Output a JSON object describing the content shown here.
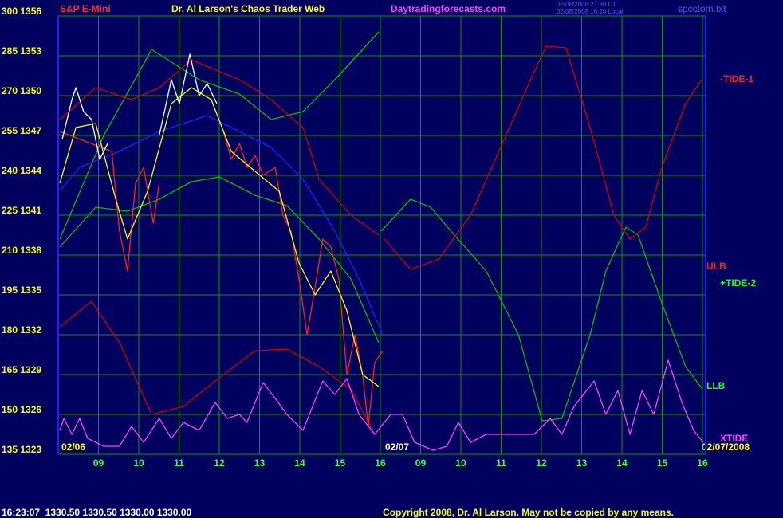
{
  "chart_data": {
    "type": "line",
    "title": "S&P E-Mini",
    "subtitle": "Dr. Al Larson's Chaos Trader Web",
    "site": "Daytradingforecasts.com",
    "stamp": [
      "02/08/2008 21:30 UT",
      "02/08/2008 16:20 Local"
    ],
    "file": "spcctom.txt",
    "date_labels": [
      "02/06",
      "02/07",
      "02/07/2008"
    ],
    "footer_left": "16:23:07  1330.50 1330.50 1330.00 1330.00",
    "footer_right": "Copyright 2008, Dr. Al Larson. May not be copied by any means.",
    "annotations": [
      {
        "text": "-TIDE-1",
        "color": "#ff2020"
      },
      {
        "text": "ULB",
        "color": "#ff2020"
      },
      {
        "text": "+TIDE-2",
        "color": "#20ff20"
      },
      {
        "text": "LLB",
        "color": "#20ff20"
      },
      {
        "text": "XTIDE",
        "color": "#ff40ff"
      }
    ],
    "xlim": [
      0,
      16.08
    ],
    "ylim": [
      135,
      300
    ],
    "grid": true,
    "xticks": [
      {
        "value": 1,
        "label": "09"
      },
      {
        "value": 2,
        "label": "10"
      },
      {
        "value": 3,
        "label": "11"
      },
      {
        "value": 4,
        "label": "12"
      },
      {
        "value": 5,
        "label": "13"
      },
      {
        "value": 6,
        "label": "14"
      },
      {
        "value": 7,
        "label": "15"
      },
      {
        "value": 8,
        "label": "16"
      },
      {
        "value": 9,
        "label": "09"
      },
      {
        "value": 10,
        "label": "10"
      },
      {
        "value": 11,
        "label": "11"
      },
      {
        "value": 12,
        "label": "12"
      },
      {
        "value": 13,
        "label": "13"
      },
      {
        "value": 14,
        "label": "14"
      },
      {
        "value": 15,
        "label": "15"
      },
      {
        "value": 16,
        "label": "16"
      }
    ],
    "yticks": [
      {
        "value": 300,
        "label": "300 1356"
      },
      {
        "value": 285,
        "label": "285 1353"
      },
      {
        "value": 270,
        "label": "270 1350"
      },
      {
        "value": 255,
        "label": "255 1347"
      },
      {
        "value": 240,
        "label": "240 1344"
      },
      {
        "value": 225,
        "label": "225 1341"
      },
      {
        "value": 210,
        "label": "210 1338"
      },
      {
        "value": 195,
        "label": "195 1335"
      },
      {
        "value": 180,
        "label": "180 1332"
      },
      {
        "value": 165,
        "label": "165 1329"
      },
      {
        "value": 150,
        "label": "150 1326"
      },
      {
        "value": 135,
        "label": "135 1323"
      }
    ],
    "series": [
      {
        "color": "#00c000",
        "x": [
          0.04,
          1.13,
          2.32,
          3.5,
          4.5,
          5.29,
          6.08,
          6.87,
          7.96
        ],
        "values": [
          216,
          255,
          287.4,
          276,
          270.6,
          261,
          264,
          276,
          294
        ]
      },
      {
        "color": "#00c000",
        "x": [
          8.02,
          8.75,
          9.25,
          9.84,
          10.63,
          11.43,
          12.02,
          12.51,
          13.21,
          13.6,
          14.1,
          14.4,
          14.99,
          15.58,
          15.98
        ],
        "values": [
          219,
          231,
          228,
          217.5,
          204,
          180,
          147.6,
          148.5,
          180,
          204,
          220.5,
          217.5,
          192,
          168,
          159.9
        ]
      },
      {
        "color": "#00c000",
        "x": [
          0.04,
          0.93,
          1.72,
          2.51,
          3.31,
          4.0,
          4.89,
          5.68,
          6.48,
          7.27,
          7.96
        ],
        "values": [
          213,
          228,
          226.5,
          231,
          237.6,
          239.4,
          232.5,
          228.6,
          216,
          201,
          177
        ]
      },
      {
        "color": "#d00000",
        "x": [
          0.04,
          0.93,
          1.82,
          2.51,
          3.31,
          4.5,
          5.29,
          6.08,
          6.48,
          7.27,
          7.96
        ],
        "values": [
          261,
          273,
          268.5,
          273,
          283.5,
          276,
          268.5,
          258,
          238.5,
          225,
          217.5
        ]
      },
      {
        "color": "#d00000",
        "x": [
          8.1,
          8.75,
          9.45,
          10.24,
          11.03,
          11.82,
          12.12,
          12.61,
          13.21,
          13.8,
          14.2,
          14.59,
          14.99,
          15.58,
          15.98
        ],
        "values": [
          216,
          204.6,
          208.5,
          225,
          252,
          279,
          288.6,
          288,
          258,
          225,
          216,
          220.5,
          243,
          267,
          276
        ]
      },
      {
        "color": "#d00000",
        "x": [
          0.04,
          0.83,
          1.52,
          2.32,
          3.11,
          3.9,
          4.89,
          5.68,
          6.48,
          7.27,
          7.86
        ],
        "values": [
          183,
          192.6,
          177,
          150,
          153,
          162.6,
          174,
          174.6,
          168,
          159.6,
          142.5
        ]
      },
      {
        "color": "#2020ff",
        "x": [
          0.04,
          0.53,
          1.52,
          2.51,
          3.7,
          4.5,
          5.29,
          6.08,
          6.87,
          7.47,
          8.06
        ],
        "values": [
          234,
          243,
          249,
          256.5,
          262.5,
          256.5,
          250.5,
          238.5,
          219,
          201,
          180
        ]
      },
      {
        "color": "#ff2020",
        "x": [
          0.04,
          1.33,
          1.52,
          1.72,
          1.92,
          2.12,
          2.36,
          2.51,
          3.3,
          4.1,
          4.3,
          4.5,
          4.69,
          4.89,
          5.09,
          5.39,
          5.58,
          5.78,
          5.98,
          6.18,
          6.38,
          6.57,
          6.77,
          6.97,
          7.17,
          7.37,
          7.56,
          7.7,
          7.86,
          8.06
        ],
        "values": [
          256.5,
          249,
          219,
          204,
          237,
          243,
          222,
          237,
          null,
          256.5,
          246,
          252,
          243,
          247.5,
          240,
          243,
          225,
          219,
          201,
          180,
          198,
          216,
          213,
          201,
          165,
          180,
          165,
          145.5,
          169.5,
          174
        ]
      },
      {
        "color": "#ffffff",
        "x": [
          0.1,
          0.34,
          0.44,
          0.63,
          0.83,
          1.03,
          1.23,
          1.9,
          2.51,
          2.81,
          3.01,
          3.27,
          3.5,
          3.7,
          3.94
        ],
        "values": [
          253.5,
          268.5,
          273,
          264,
          261,
          246,
          252,
          null,
          255,
          276,
          267,
          285.6,
          270,
          274.5,
          267
        ]
      },
      {
        "color": "#ffff00",
        "x": [
          0.04,
          0.44,
          0.93,
          1.43,
          1.72,
          2.22,
          2.81,
          3.31,
          3.8,
          4.3,
          4.89,
          5.49,
          5.98,
          6.38,
          6.77,
          7.17,
          7.56,
          7.96
        ],
        "values": [
          237,
          258,
          259.5,
          231,
          216,
          234,
          267,
          273,
          268.5,
          249,
          241.5,
          234,
          207,
          195,
          204,
          189,
          165,
          160.5
        ]
      },
      {
        "color": "#ff40ff",
        "x": [
          0.04,
          0.14,
          0.34,
          0.53,
          0.73,
          1.13,
          1.52,
          1.82,
          2.12,
          2.51,
          2.81,
          3.11,
          3.5,
          3.9,
          4.2,
          4.5,
          4.69,
          5.09,
          5.39,
          5.68,
          6.08,
          6.57,
          6.87,
          7.17,
          7.47,
          7.86,
          8.26,
          8.55,
          8.85,
          9.31,
          9.65,
          9.94,
          10.24,
          10.63,
          11.03,
          11.43,
          11.82,
          12.22,
          12.51,
          12.81,
          13.31,
          13.6,
          13.9,
          14.2,
          14.5,
          14.79,
          15.15,
          15.49,
          15.78,
          16.02
        ],
        "values": [
          144,
          148.5,
          142.5,
          148.5,
          141,
          138,
          138,
          145.5,
          139.5,
          148.5,
          141,
          147,
          144,
          154.5,
          148.5,
          150,
          147,
          162,
          156,
          150,
          144,
          162.6,
          157.5,
          163.5,
          150,
          142.5,
          150,
          150,
          139.5,
          136.5,
          138,
          147,
          139.5,
          142.5,
          142.5,
          142.5,
          142.5,
          148.5,
          142.5,
          153,
          162.6,
          150,
          159,
          142.5,
          159,
          150,
          170.4,
          154.5,
          144,
          139.5
        ]
      }
    ]
  }
}
